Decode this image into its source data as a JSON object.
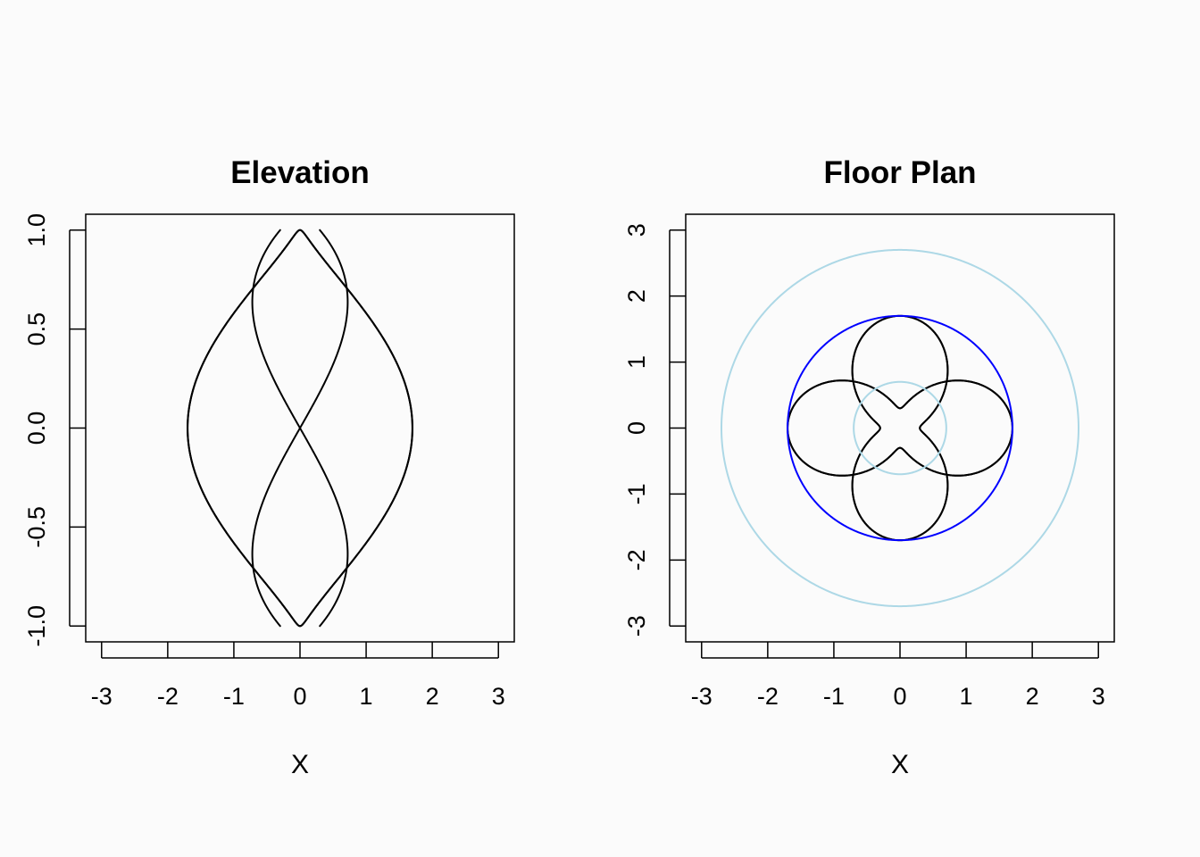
{
  "chart_data": [
    {
      "type": "line",
      "title": "Elevation",
      "xlabel": "X",
      "ylabel": "",
      "xlim": [
        -3.24,
        3.24
      ],
      "ylim": [
        -1.08,
        1.08
      ],
      "xticks": [
        -3,
        -2,
        -1,
        0,
        1,
        2,
        3
      ],
      "yticks": [
        -1.0,
        -0.5,
        0.0,
        0.5,
        1.0
      ],
      "xtick_labels": [
        "-3",
        "-2",
        "-1",
        "0",
        "1",
        "2",
        "3"
      ],
      "ytick_labels": [
        "-1.0",
        "-0.5",
        "0.0",
        "0.5",
        "1.0"
      ],
      "grid": false,
      "series": [
        {
          "color": "#000000",
          "kind": "parametric",
          "R": 1.0,
          "r": 0.7,
          "k": 2,
          "phase": 0.0
        },
        {
          "color": "#000000",
          "kind": "parametric",
          "R": 1.0,
          "r": 0.7,
          "k": 2,
          "phase": 1.5707963
        },
        {
          "color": "#000000",
          "kind": "parametric",
          "R": 1.0,
          "r": 0.7,
          "k": 2,
          "phase": 3.1415927
        },
        {
          "color": "#000000",
          "kind": "parametric",
          "R": 1.0,
          "r": 0.7,
          "k": 2,
          "phase": 4.712389
        }
      ]
    },
    {
      "type": "line",
      "title": "Floor Plan",
      "xlabel": "X",
      "ylabel": "",
      "xlim": [
        -3.24,
        3.24
      ],
      "ylim": [
        -3.24,
        3.24
      ],
      "xticks": [
        -3,
        -2,
        -1,
        0,
        1,
        2,
        3
      ],
      "yticks": [
        -3,
        -2,
        -1,
        0,
        1,
        2,
        3
      ],
      "xtick_labels": [
        "-3",
        "-2",
        "-1",
        "0",
        "1",
        "2",
        "3"
      ],
      "ytick_labels": [
        "-3",
        "-2",
        "-1",
        "0",
        "1",
        "2",
        "3"
      ],
      "grid": false,
      "series": [
        {
          "color": "#000000",
          "kind": "parametric",
          "R": 1.0,
          "r": 0.7,
          "k": 2,
          "phase": 0.0
        },
        {
          "color": "#000000",
          "kind": "parametric",
          "R": 1.0,
          "r": 0.7,
          "k": 2,
          "phase": 1.5707963
        },
        {
          "color": "#000000",
          "kind": "parametric",
          "R": 1.0,
          "r": 0.7,
          "k": 2,
          "phase": 3.1415927
        },
        {
          "color": "#000000",
          "kind": "parametric",
          "R": 1.0,
          "r": 0.7,
          "k": 2,
          "phase": 4.712389
        },
        {
          "color": "#0000ff",
          "kind": "circle",
          "cx": 0,
          "cy": 0,
          "radius": 1.7
        },
        {
          "color": "#add8e6",
          "kind": "circle",
          "cx": 0,
          "cy": 0,
          "radius": 0.7
        },
        {
          "color": "#add8e6",
          "kind": "circle",
          "cx": 0,
          "cy": 0,
          "radius": 2.7
        }
      ]
    }
  ]
}
